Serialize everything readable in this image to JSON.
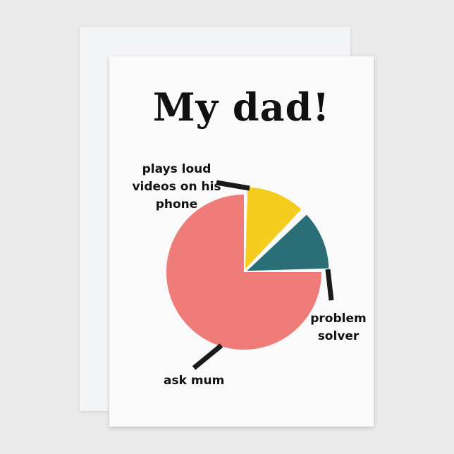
{
  "card": {
    "title": "My dad!"
  },
  "chart_data": {
    "type": "pie",
    "title": "My dad!",
    "slices": [
      {
        "label": "plays loud videos on his phone",
        "value": 12.5,
        "color": "#f4cd1f"
      },
      {
        "label": "problem solver",
        "value": 12.5,
        "color": "#2a6e78"
      },
      {
        "label": "ask mum",
        "value": 75,
        "color": "#ef7c78"
      }
    ]
  }
}
